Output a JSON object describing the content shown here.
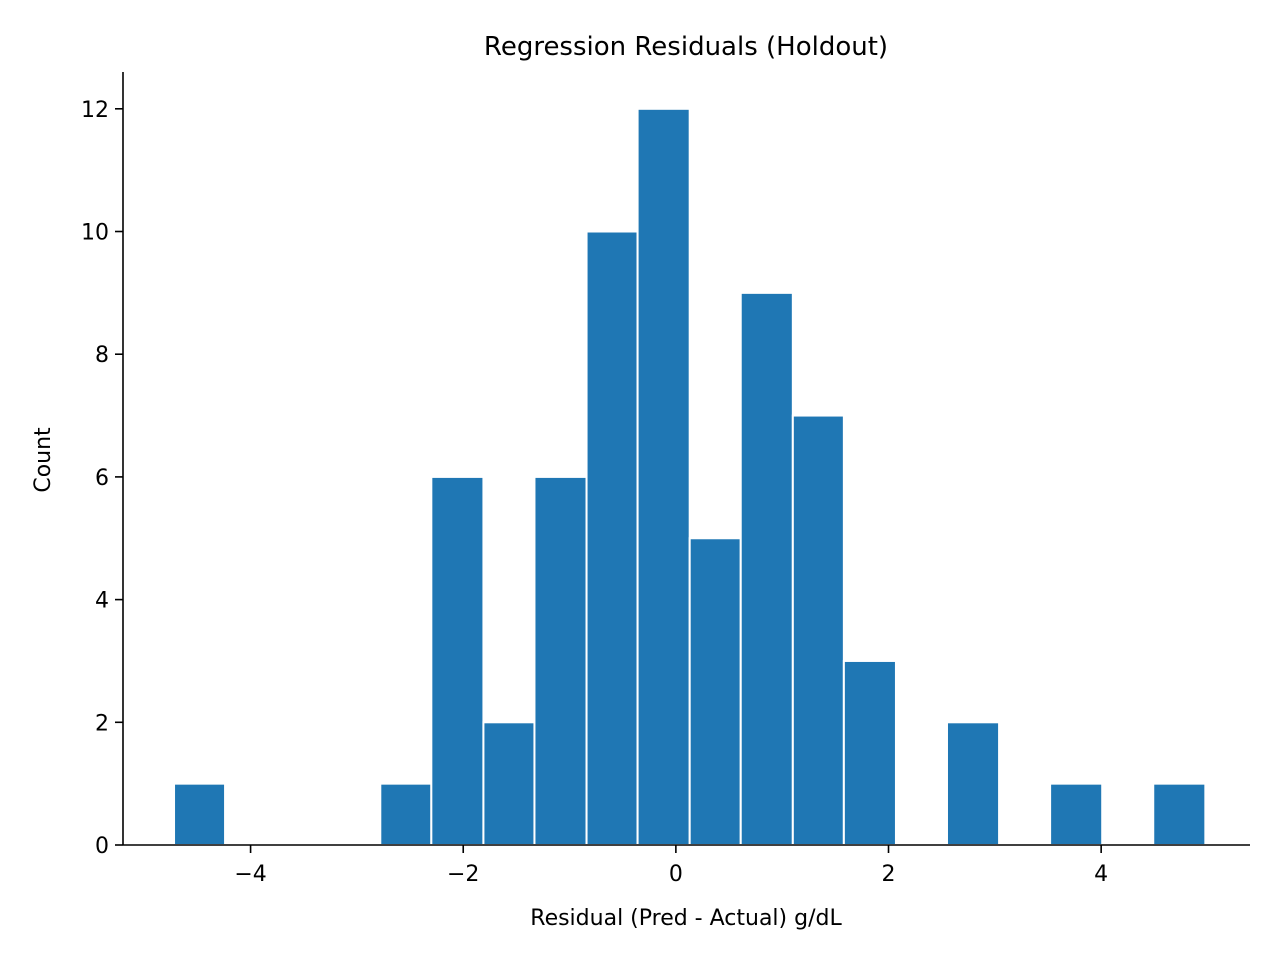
{
  "chart_data": {
    "type": "bar",
    "title": "Regression Residuals (Holdout)",
    "xlabel": "Residual (Pred - Actual) g/dL",
    "ylabel": "Count",
    "bar_color": "#1f77b4",
    "xlim": [
      -5.2,
      5.4
    ],
    "ylim": [
      0,
      12.6
    ],
    "grid": false,
    "x_ticks": [
      {
        "value": -4,
        "label": "−4"
      },
      {
        "value": -2,
        "label": "−2"
      },
      {
        "value": 0,
        "label": "0"
      },
      {
        "value": 2,
        "label": "2"
      },
      {
        "value": 4,
        "label": "4"
      }
    ],
    "y_ticks": [
      {
        "value": 0,
        "label": "0"
      },
      {
        "value": 2,
        "label": "2"
      },
      {
        "value": 4,
        "label": "4"
      },
      {
        "value": 6,
        "label": "6"
      },
      {
        "value": 8,
        "label": "8"
      },
      {
        "value": 10,
        "label": "10"
      },
      {
        "value": 12,
        "label": "12"
      }
    ],
    "bins": [
      {
        "x0": -4.72,
        "x1": -4.24,
        "count": 1
      },
      {
        "x0": -2.78,
        "x1": -2.3,
        "count": 1
      },
      {
        "x0": -2.3,
        "x1": -1.81,
        "count": 6
      },
      {
        "x0": -1.81,
        "x1": -1.33,
        "count": 2
      },
      {
        "x0": -1.33,
        "x1": -0.84,
        "count": 6
      },
      {
        "x0": -0.84,
        "x1": -0.36,
        "count": 10
      },
      {
        "x0": -0.36,
        "x1": 0.13,
        "count": 12
      },
      {
        "x0": 0.13,
        "x1": 0.61,
        "count": 5
      },
      {
        "x0": 0.61,
        "x1": 1.1,
        "count": 9
      },
      {
        "x0": 1.1,
        "x1": 1.58,
        "count": 7
      },
      {
        "x0": 1.58,
        "x1": 2.07,
        "count": 3
      },
      {
        "x0": 2.55,
        "x1": 3.04,
        "count": 2
      },
      {
        "x0": 3.52,
        "x1": 4.01,
        "count": 1
      },
      {
        "x0": 4.49,
        "x1": 4.98,
        "count": 1
      }
    ]
  }
}
